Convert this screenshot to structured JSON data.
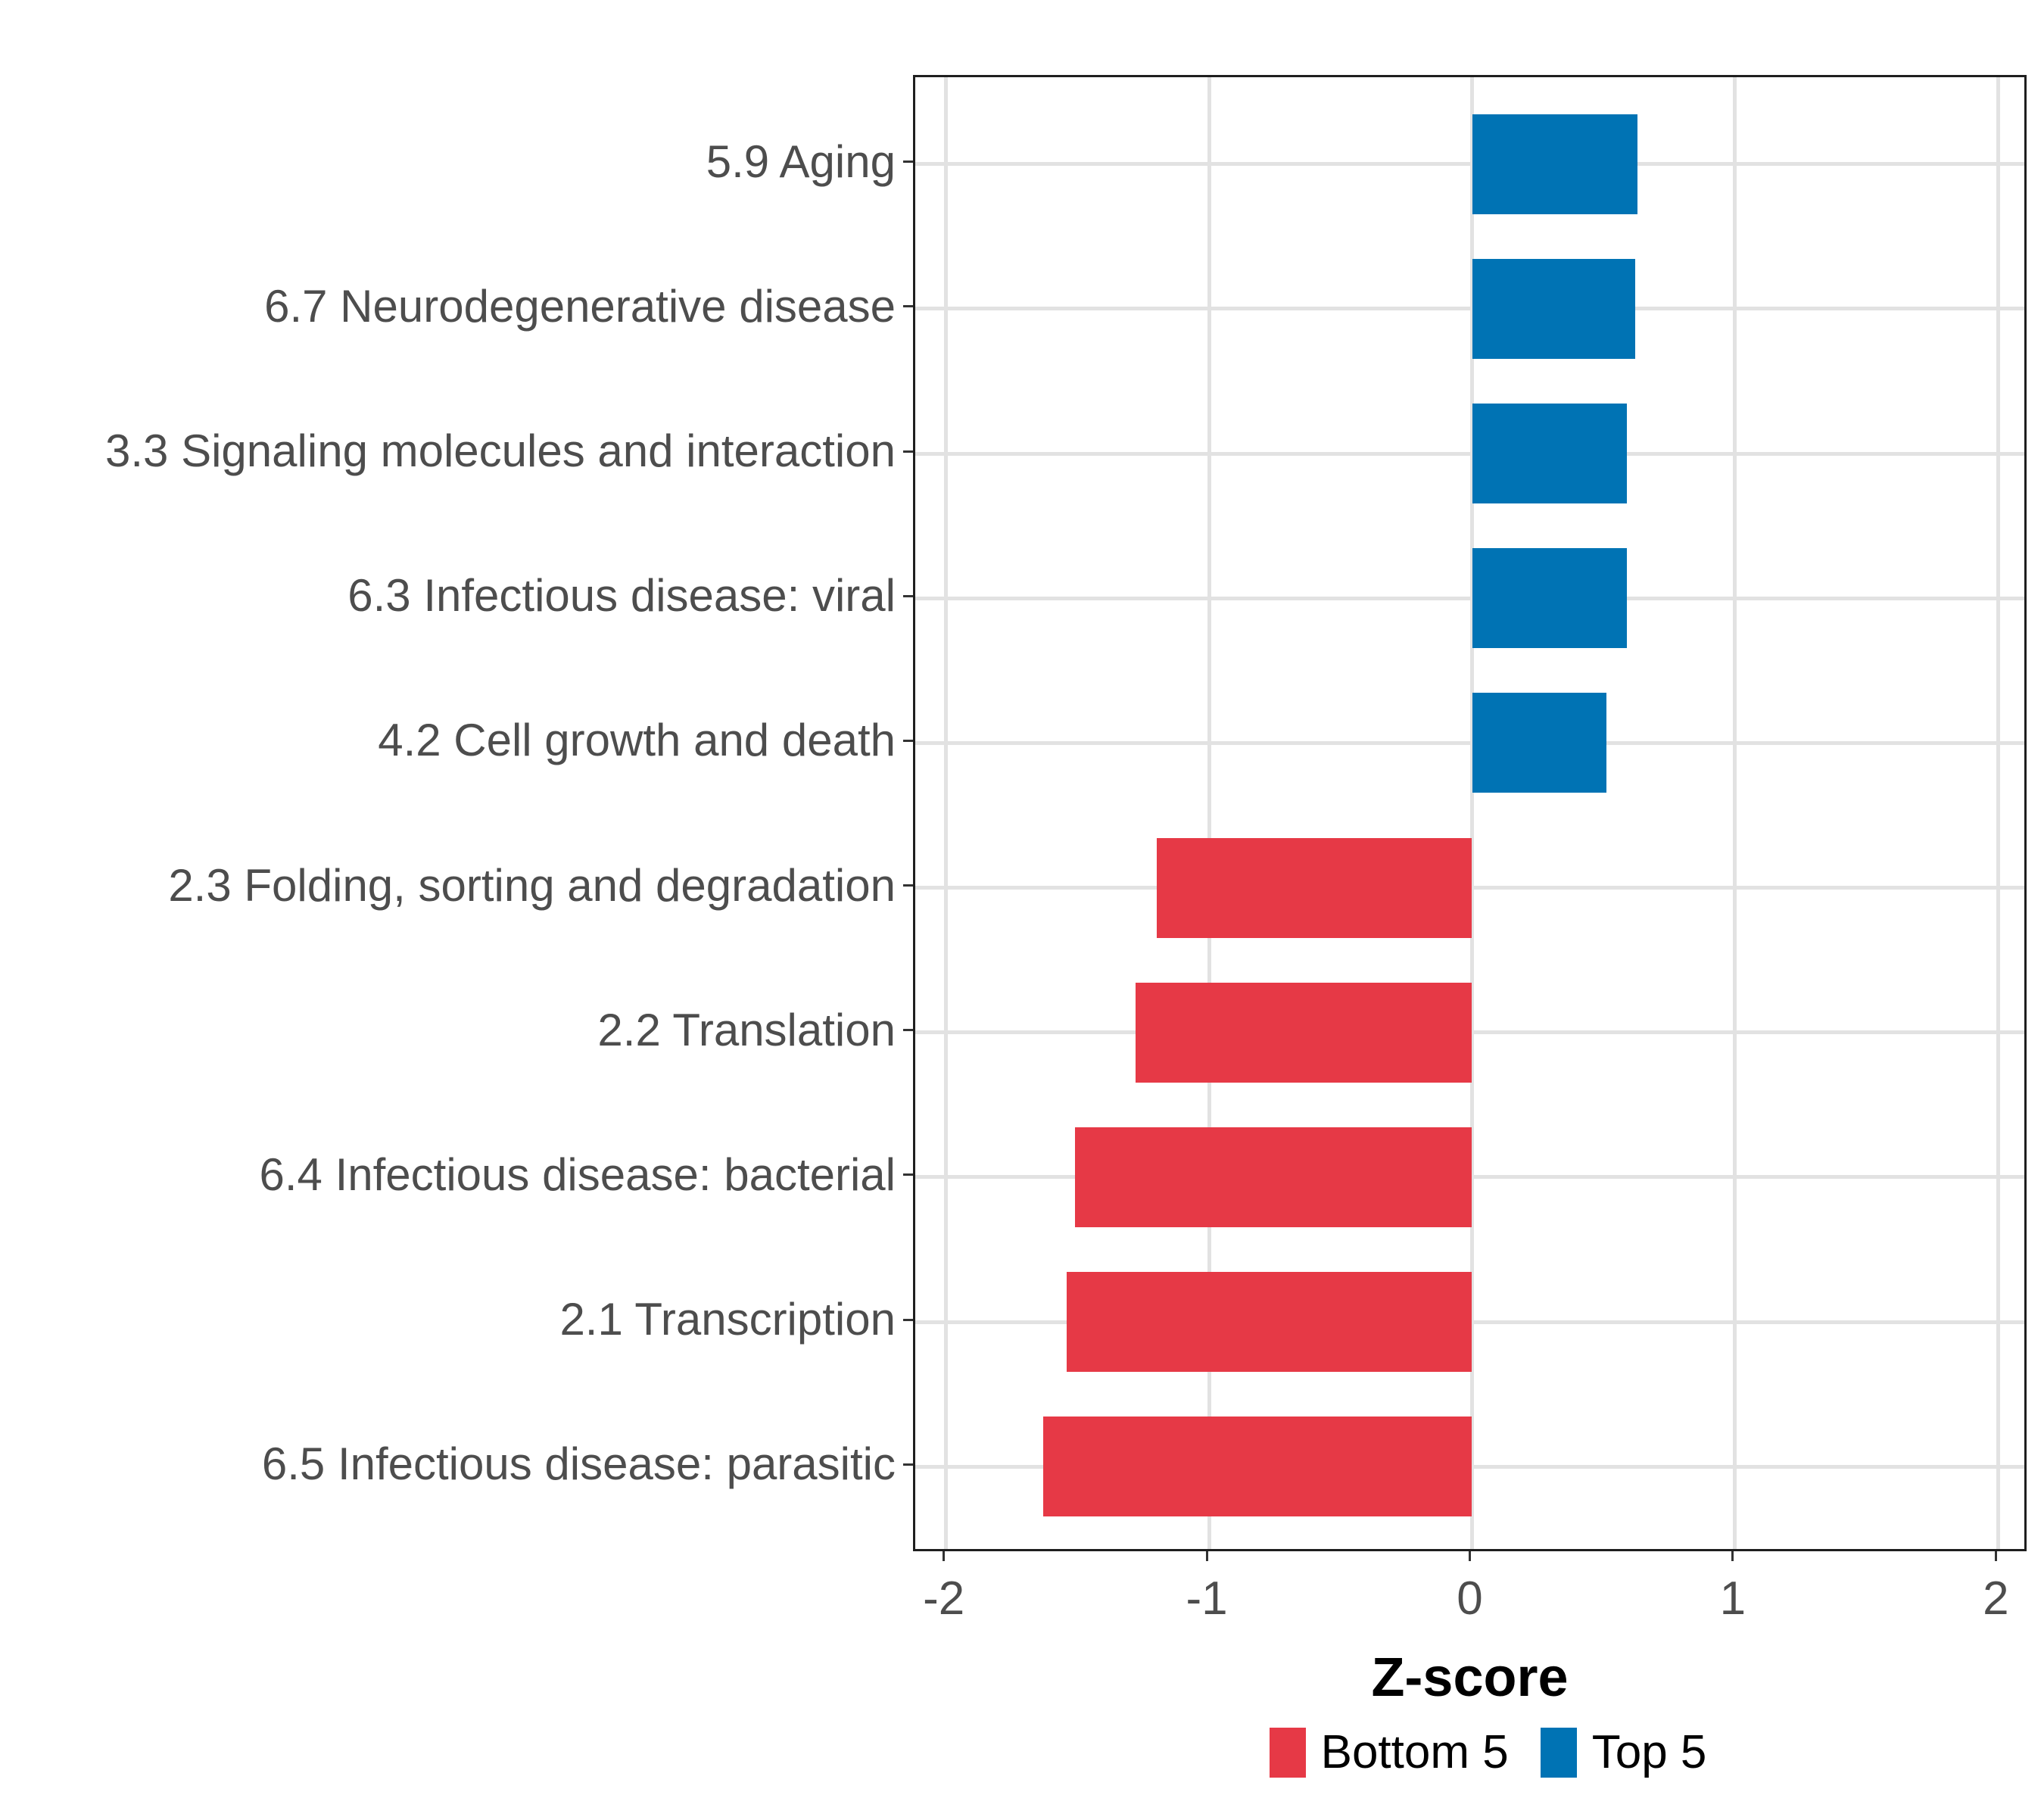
{
  "chart_data": {
    "type": "bar",
    "orientation": "horizontal",
    "title": "",
    "xlabel": "Z-score",
    "ylabel": "",
    "xlim": [
      -2.117,
      2.117
    ],
    "x_ticks": [
      -2,
      -1,
      0,
      1,
      2
    ],
    "x_tick_labels": [
      "-2",
      "-1",
      "0",
      "1",
      "2"
    ],
    "grid": "major-only",
    "legend_position": "bottom",
    "bars": [
      {
        "label": "5.9 Aging",
        "value": 0.63,
        "group": "Top 5"
      },
      {
        "label": "6.7 Neurodegenerative disease",
        "value": 0.62,
        "group": "Top 5"
      },
      {
        "label": "3.3 Signaling molecules and interaction",
        "value": 0.59,
        "group": "Top 5"
      },
      {
        "label": "6.3 Infectious disease: viral",
        "value": 0.59,
        "group": "Top 5"
      },
      {
        "label": "4.2 Cell growth and death",
        "value": 0.51,
        "group": "Top 5"
      },
      {
        "label": "2.3 Folding, sorting and degradation",
        "value": -1.2,
        "group": "Bottom 5"
      },
      {
        "label": "2.2 Translation",
        "value": -1.28,
        "group": "Bottom 5"
      },
      {
        "label": "6.4 Infectious disease: bacterial",
        "value": -1.51,
        "group": "Bottom 5"
      },
      {
        "label": "2.1 Transcription",
        "value": -1.54,
        "group": "Bottom 5"
      },
      {
        "label": "6.5 Infectious disease: parasitic",
        "value": -1.63,
        "group": "Bottom 5"
      }
    ],
    "legend": [
      {
        "label": "Bottom 5",
        "color": "#E63946"
      },
      {
        "label": "Top 5",
        "color": "#0073B4"
      }
    ],
    "colors": {
      "bottom5_red": "#E63946",
      "top5_blue": "#0073B4",
      "gridline": "#E2E2E2",
      "panel_border": "#1F1F1F",
      "tick_mark": "#333333",
      "axis_text": "#4D4D4D",
      "title_text": "#000000"
    }
  }
}
